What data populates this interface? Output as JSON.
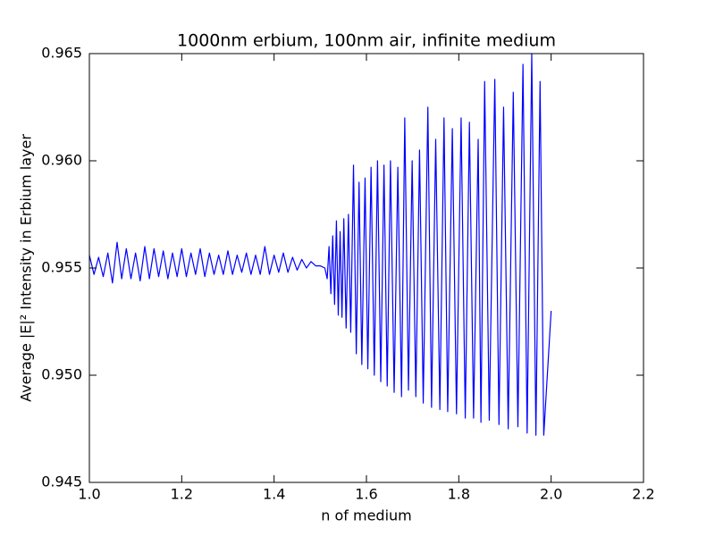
{
  "chart_data": {
    "type": "line",
    "title": "1000nm erbium, 100nm air, infinite medium",
    "xlabel": "n of medium",
    "ylabel": "Average |E|² Intensity in Erbium layer",
    "color": "#0000ff",
    "x": [
      1.0,
      1.01,
      1.02,
      1.03,
      1.04,
      1.05,
      1.06,
      1.07,
      1.08,
      1.09,
      1.1,
      1.11,
      1.12,
      1.13,
      1.14,
      1.15,
      1.16,
      1.17,
      1.18,
      1.19,
      1.2,
      1.21,
      1.22,
      1.23,
      1.24,
      1.25,
      1.26,
      1.27,
      1.28,
      1.29,
      1.3,
      1.31,
      1.32,
      1.33,
      1.34,
      1.35,
      1.36,
      1.37,
      1.38,
      1.39,
      1.4,
      1.41,
      1.42,
      1.43,
      1.44,
      1.45,
      1.46,
      1.47,
      1.48,
      1.49,
      1.5,
      1.51,
      1.515,
      1.519,
      1.523,
      1.527,
      1.531,
      1.535,
      1.539,
      1.543,
      1.547,
      1.551,
      1.556,
      1.561,
      1.566,
      1.572,
      1.578,
      1.584,
      1.59,
      1.597,
      1.603,
      1.61,
      1.617,
      1.624,
      1.631,
      1.638,
      1.645,
      1.652,
      1.66,
      1.668,
      1.676,
      1.683,
      1.691,
      1.699,
      1.707,
      1.715,
      1.723,
      1.733,
      1.741,
      1.75,
      1.759,
      1.768,
      1.776,
      1.786,
      1.795,
      1.805,
      1.814,
      1.823,
      1.832,
      1.842,
      1.848,
      1.856,
      1.866,
      1.878,
      1.887,
      1.897,
      1.907,
      1.918,
      1.928,
      1.939,
      1.948,
      1.958,
      1.967,
      1.976,
      1.984,
      2.0
    ],
    "values": [
      0.9556,
      0.9547,
      0.9555,
      0.9546,
      0.9557,
      0.9543,
      0.9562,
      0.9545,
      0.9559,
      0.9545,
      0.9557,
      0.9544,
      0.956,
      0.9545,
      0.9559,
      0.9546,
      0.9558,
      0.9545,
      0.9557,
      0.9546,
      0.9559,
      0.9546,
      0.9557,
      0.9547,
      0.9559,
      0.9546,
      0.9557,
      0.9547,
      0.9556,
      0.9547,
      0.9558,
      0.9547,
      0.9556,
      0.9548,
      0.9557,
      0.9547,
      0.9556,
      0.9547,
      0.956,
      0.9547,
      0.9556,
      0.9548,
      0.9557,
      0.9548,
      0.9555,
      0.9549,
      0.9554,
      0.955,
      0.9553,
      0.9551,
      0.9551,
      0.955,
      0.9545,
      0.956,
      0.9538,
      0.9565,
      0.9533,
      0.9572,
      0.9528,
      0.9567,
      0.9527,
      0.9573,
      0.9522,
      0.9575,
      0.952,
      0.9598,
      0.951,
      0.959,
      0.9505,
      0.9592,
      0.9503,
      0.9597,
      0.95,
      0.96,
      0.9497,
      0.9598,
      0.9495,
      0.96,
      0.9492,
      0.9597,
      0.949,
      0.962,
      0.9493,
      0.96,
      0.949,
      0.9605,
      0.9487,
      0.9625,
      0.9485,
      0.961,
      0.9484,
      0.962,
      0.9483,
      0.9615,
      0.9482,
      0.962,
      0.948,
      0.9618,
      0.948,
      0.961,
      0.9478,
      0.9637,
      0.9479,
      0.9638,
      0.9477,
      0.9625,
      0.9475,
      0.9632,
      0.9476,
      0.9645,
      0.9473,
      0.965,
      0.9472,
      0.9637,
      0.9472,
      0.953
    ],
    "xlim": [
      1.0,
      2.2
    ],
    "ylim": [
      0.945,
      0.965
    ],
    "xticks": [
      {
        "value": 1.0,
        "label": "1.0"
      },
      {
        "value": 1.2,
        "label": "1.2"
      },
      {
        "value": 1.4,
        "label": "1.4"
      },
      {
        "value": 1.6,
        "label": "1.6"
      },
      {
        "value": 1.8,
        "label": "1.8"
      },
      {
        "value": 2.0,
        "label": "2.0"
      },
      {
        "value": 2.2,
        "label": "2.2"
      }
    ],
    "yticks": [
      {
        "value": 0.945,
        "label": "0.945"
      },
      {
        "value": 0.95,
        "label": "0.950"
      },
      {
        "value": 0.955,
        "label": "0.955"
      },
      {
        "value": 0.96,
        "label": "0.960"
      },
      {
        "value": 0.965,
        "label": "0.965"
      }
    ],
    "grid": false
  }
}
